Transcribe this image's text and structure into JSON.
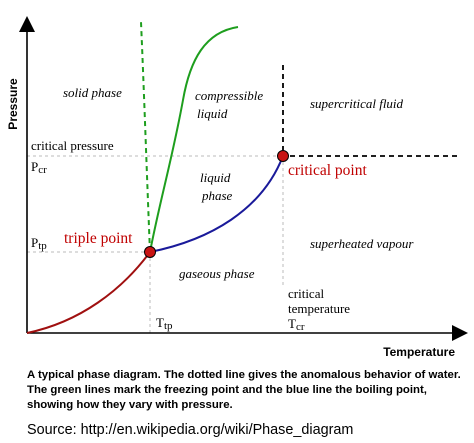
{
  "axes": {
    "y_title": "Pressure",
    "x_title": "Temperature",
    "critical_pressure": "critical pressure",
    "p_cr": "P",
    "p_cr_sub": "cr",
    "p_tp": "P",
    "p_tp_sub": "tp",
    "t_tp": "T",
    "t_tp_sub": "tp",
    "critical_temperature_line1": "critical",
    "critical_temperature_line2": "temperature",
    "t_cr": "T",
    "t_cr_sub": "cr"
  },
  "regions": {
    "solid": "solid phase",
    "compressible_line1": "compressible",
    "compressible_line2": "liquid",
    "supercritical": "supercritical fluid",
    "liquid_line1": "liquid",
    "liquid_line2": "phase",
    "gaseous": "gaseous phase",
    "superheated": "superheated vapour"
  },
  "points": {
    "triple": "triple point",
    "critical": "critical point"
  },
  "colors": {
    "sublimation": "#a01010",
    "fusion": "#1e9e1e",
    "vaporization": "#1a1a9a",
    "point_fill": "#c81414",
    "point_label": "#c00000",
    "guide": "#bbbbbb"
  },
  "caption": "A typical phase diagram. The dotted line gives the anomalous behavior of water. The green lines mark the freezing point and the blue line the boiling point, showing how they vary with pressure.",
  "source": "Source: http://en.wikipedia.org/wiki/Phase_diagram"
}
